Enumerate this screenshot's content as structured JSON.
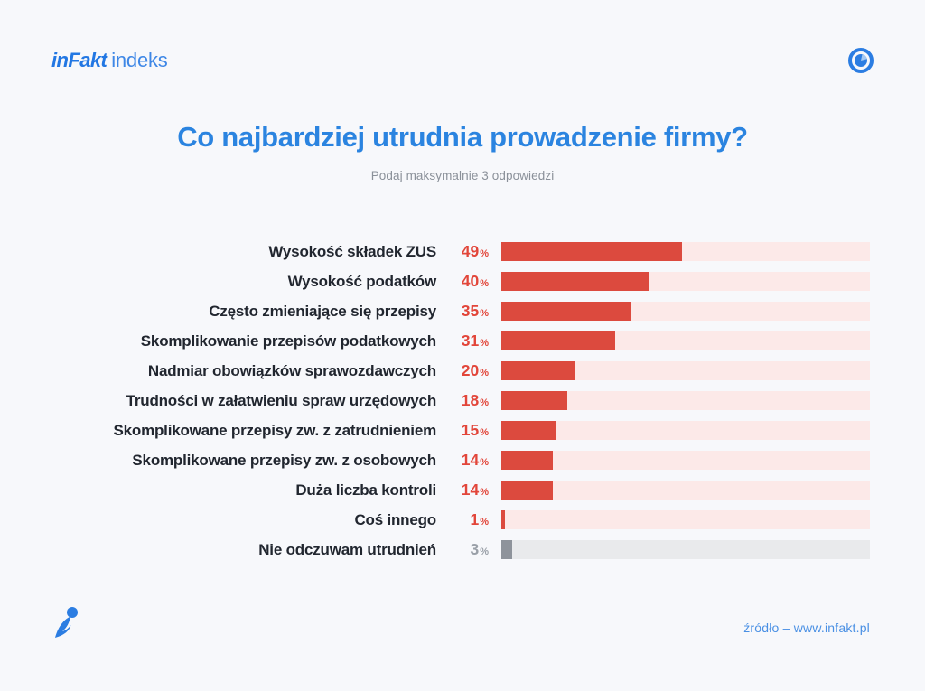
{
  "header": {
    "logo_bold": "inFakt",
    "logo_light": "indeks"
  },
  "title": "Co najbardziej utrudnia prowadzenie firmy?",
  "subtitle": "Podaj maksymalnie 3 odpowiedzi",
  "footer": {
    "source": "źródło – www.infakt.pl"
  },
  "icons": {
    "top_right": "pie-chart-icon",
    "bottom_left": "hummingbird-logo-icon"
  },
  "colors": {
    "page_bg": "#f7f8fb",
    "brand_blue": "#2277e3",
    "title_blue": "#2b84e0",
    "subtitle_gray": "#8a9099",
    "label_dark": "#21262f",
    "value_red": "#e2463a",
    "bar_red": "#dc4a3e",
    "bar_track_pink": "#fce9e8",
    "muted_bar_gray": "#8e939b",
    "muted_value_gray": "#9aa0a8",
    "muted_track_gray": "#e9eaec",
    "link_blue": "#4a90e4"
  },
  "chart_data": {
    "type": "bar",
    "orientation": "horizontal",
    "title": "Co najbardziej utrudnia prowadzenie firmy?",
    "subtitle": "Podaj maksymalnie 3 odpowiedzi",
    "unit": "%",
    "xlim": [
      0,
      100
    ],
    "grid": false,
    "legend": false,
    "value_labels_position": "left-of-bar",
    "categories": [
      "Wysokość składek ZUS",
      "Wysokość podatków",
      "Często zmieniające się przepisy",
      "Skomplikowanie przepisów podatkowych",
      "Nadmiar obowiązków sprawozdawczych",
      "Trudności w załatwieniu spraw urzędowych",
      "Skomplikowane przepisy zw. z zatrudnieniem",
      "Skomplikowane przepisy zw. z osobowych",
      "Duża liczba kontroli",
      "Coś innego",
      "Nie odczuwam utrudnień"
    ],
    "values": [
      49,
      40,
      35,
      31,
      20,
      18,
      15,
      14,
      14,
      1,
      3
    ],
    "muted_index": 10
  }
}
